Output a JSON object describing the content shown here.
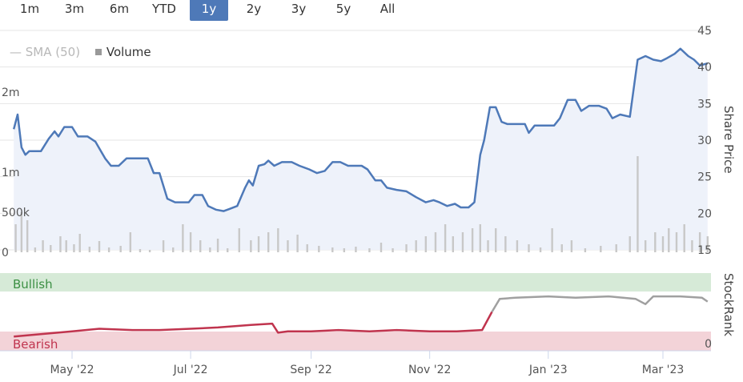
{
  "range_selector": {
    "buttons": [
      "1m",
      "3m",
      "6m",
      "YTD",
      "1y",
      "2y",
      "3y",
      "5y",
      "All"
    ],
    "active": "1y"
  },
  "legend": {
    "sma_label": "SMA (50)",
    "volume_label": "Volume"
  },
  "axis_titles": {
    "price": "Share Price",
    "rank": "StockRank"
  },
  "colors": {
    "price_line": "#4e79b8",
    "volume_bar": "#c8c8c8",
    "bullish_band": "#d6ead7",
    "bearish_band": "#f3d3d8",
    "bearish_line": "#c0344e",
    "bullish_line": "#a0a0a0",
    "active_button": "#4e79b8"
  },
  "chart_data": [
    {
      "type": "line",
      "ylabel": "Share Price",
      "ylim": [
        15,
        45
      ],
      "y_ticks": [
        "45",
        "40",
        "35",
        "30",
        "25",
        "20",
        "15"
      ],
      "x_ticks": [
        "May '22",
        "Jul '22",
        "Sep '22",
        "Nov '22",
        "Jan '23",
        "Mar '23"
      ],
      "series": [
        {
          "values": [
            [
              "2022-04-01",
              31.5
            ],
            [
              "2022-04-03",
              33.5
            ],
            [
              "2022-04-05",
              29.0
            ],
            [
              "2022-04-07",
              28.0
            ],
            [
              "2022-04-09",
              28.5
            ],
            [
              "2022-04-15",
              28.5
            ],
            [
              "2022-04-19",
              30.2
            ],
            [
              "2022-04-22",
              31.2
            ],
            [
              "2022-04-24",
              30.5
            ],
            [
              "2022-04-27",
              31.8
            ],
            [
              "2022-05-01",
              31.8
            ],
            [
              "2022-05-04",
              30.5
            ],
            [
              "2022-05-09",
              30.5
            ],
            [
              "2022-05-13",
              29.8
            ],
            [
              "2022-05-18",
              27.5
            ],
            [
              "2022-05-21",
              26.5
            ],
            [
              "2022-05-25",
              26.5
            ],
            [
              "2022-05-29",
              27.5
            ],
            [
              "2022-06-04",
              27.5
            ],
            [
              "2022-06-09",
              27.5
            ],
            [
              "2022-06-12",
              25.5
            ],
            [
              "2022-06-15",
              25.5
            ],
            [
              "2022-06-19",
              22.0
            ],
            [
              "2022-06-23",
              21.5
            ],
            [
              "2022-06-30",
              21.5
            ],
            [
              "2022-07-03",
              22.5
            ],
            [
              "2022-07-07",
              22.5
            ],
            [
              "2022-07-10",
              21.0
            ],
            [
              "2022-07-14",
              20.5
            ],
            [
              "2022-07-18",
              20.3
            ],
            [
              "2022-07-21",
              20.6
            ],
            [
              "2022-07-25",
              21.0
            ],
            [
              "2022-07-29",
              23.5
            ],
            [
              "2022-07-31",
              24.5
            ],
            [
              "2022-08-02",
              23.8
            ],
            [
              "2022-08-05",
              26.5
            ],
            [
              "2022-08-08",
              26.7
            ],
            [
              "2022-08-10",
              27.2
            ],
            [
              "2022-08-13",
              26.5
            ],
            [
              "2022-08-17",
              27.0
            ],
            [
              "2022-08-22",
              27.0
            ],
            [
              "2022-08-26",
              26.5
            ],
            [
              "2022-08-31",
              26.0
            ],
            [
              "2022-09-04",
              25.5
            ],
            [
              "2022-09-08",
              25.8
            ],
            [
              "2022-09-12",
              27.0
            ],
            [
              "2022-09-16",
              27.0
            ],
            [
              "2022-09-20",
              26.5
            ],
            [
              "2022-09-27",
              26.5
            ],
            [
              "2022-09-30",
              26.0
            ],
            [
              "2022-10-04",
              24.5
            ],
            [
              "2022-10-07",
              24.5
            ],
            [
              "2022-10-10",
              23.5
            ],
            [
              "2022-10-15",
              23.2
            ],
            [
              "2022-10-20",
              23.0
            ],
            [
              "2022-10-25",
              22.2
            ],
            [
              "2022-10-30",
              21.5
            ],
            [
              "2022-11-03",
              21.8
            ],
            [
              "2022-11-06",
              21.5
            ],
            [
              "2022-11-10",
              21.0
            ],
            [
              "2022-11-14",
              21.3
            ],
            [
              "2022-11-17",
              20.8
            ],
            [
              "2022-11-21",
              20.8
            ],
            [
              "2022-11-24",
              21.5
            ],
            [
              "2022-11-27",
              28.0
            ],
            [
              "2022-11-29",
              30.0
            ],
            [
              "2022-12-02",
              34.5
            ],
            [
              "2022-12-05",
              34.5
            ],
            [
              "2022-12-08",
              32.5
            ],
            [
              "2022-12-11",
              32.2
            ],
            [
              "2022-12-16",
              32.2
            ],
            [
              "2022-12-20",
              32.2
            ],
            [
              "2022-12-22",
              31.0
            ],
            [
              "2022-12-25",
              32.0
            ],
            [
              "2022-12-30",
              32.0
            ],
            [
              "2023-01-04",
              32.0
            ],
            [
              "2023-01-07",
              33.0
            ],
            [
              "2023-01-11",
              35.5
            ],
            [
              "2023-01-15",
              35.5
            ],
            [
              "2023-01-18",
              34.0
            ],
            [
              "2023-01-22",
              34.7
            ],
            [
              "2023-01-27",
              34.7
            ],
            [
              "2023-01-31",
              34.3
            ],
            [
              "2023-02-03",
              33.0
            ],
            [
              "2023-02-07",
              33.5
            ],
            [
              "2023-02-12",
              33.2
            ],
            [
              "2023-02-16",
              41.0
            ],
            [
              "2023-02-20",
              41.5
            ],
            [
              "2023-02-24",
              41.0
            ],
            [
              "2023-02-28",
              40.8
            ],
            [
              "2023-03-03",
              41.2
            ],
            [
              "2023-03-07",
              41.8
            ],
            [
              "2023-03-10",
              42.5
            ],
            [
              "2023-03-14",
              41.5
            ],
            [
              "2023-03-17",
              41.0
            ],
            [
              "2023-03-20",
              40.2
            ],
            [
              "2023-03-24",
              40.5
            ]
          ]
        }
      ]
    },
    {
      "type": "bar",
      "ylabel": "Volume",
      "y_ticks": [
        "2m",
        "1m",
        "500k",
        "0"
      ],
      "values": [
        [
          "2022-04-02",
          350000
        ],
        [
          "2022-04-05",
          500000
        ],
        [
          "2022-04-08",
          400000
        ],
        [
          "2022-04-12",
          60000
        ],
        [
          "2022-04-16",
          150000
        ],
        [
          "2022-04-20",
          90000
        ],
        [
          "2022-04-25",
          200000
        ],
        [
          "2022-04-28",
          150000
        ],
        [
          "2022-05-02",
          100000
        ],
        [
          "2022-05-05",
          230000
        ],
        [
          "2022-05-10",
          70000
        ],
        [
          "2022-05-15",
          140000
        ],
        [
          "2022-05-20",
          60000
        ],
        [
          "2022-05-26",
          80000
        ],
        [
          "2022-05-31",
          250000
        ],
        [
          "2022-06-05",
          40000
        ],
        [
          "2022-06-10",
          30000
        ],
        [
          "2022-06-17",
          150000
        ],
        [
          "2022-06-22",
          60000
        ],
        [
          "2022-06-27",
          350000
        ],
        [
          "2022-07-01",
          250000
        ],
        [
          "2022-07-06",
          150000
        ],
        [
          "2022-07-11",
          60000
        ],
        [
          "2022-07-15",
          170000
        ],
        [
          "2022-07-20",
          50000
        ],
        [
          "2022-07-26",
          300000
        ],
        [
          "2022-08-01",
          150000
        ],
        [
          "2022-08-05",
          200000
        ],
        [
          "2022-08-10",
          250000
        ],
        [
          "2022-08-15",
          300000
        ],
        [
          "2022-08-20",
          150000
        ],
        [
          "2022-08-25",
          220000
        ],
        [
          "2022-08-30",
          100000
        ],
        [
          "2022-09-05",
          80000
        ],
        [
          "2022-09-12",
          60000
        ],
        [
          "2022-09-18",
          50000
        ],
        [
          "2022-09-24",
          70000
        ],
        [
          "2022-10-01",
          50000
        ],
        [
          "2022-10-07",
          120000
        ],
        [
          "2022-10-13",
          50000
        ],
        [
          "2022-10-20",
          100000
        ],
        [
          "2022-10-25",
          150000
        ],
        [
          "2022-10-30",
          200000
        ],
        [
          "2022-11-04",
          250000
        ],
        [
          "2022-11-09",
          350000
        ],
        [
          "2022-11-13",
          200000
        ],
        [
          "2022-11-18",
          250000
        ],
        [
          "2022-11-23",
          300000
        ],
        [
          "2022-11-27",
          350000
        ],
        [
          "2022-12-01",
          150000
        ],
        [
          "2022-12-05",
          300000
        ],
        [
          "2022-12-10",
          200000
        ],
        [
          "2022-12-16",
          150000
        ],
        [
          "2022-12-22",
          100000
        ],
        [
          "2022-12-28",
          60000
        ],
        [
          "2023-01-03",
          300000
        ],
        [
          "2023-01-08",
          100000
        ],
        [
          "2023-01-13",
          150000
        ],
        [
          "2023-01-20",
          50000
        ],
        [
          "2023-01-28",
          80000
        ],
        [
          "2023-02-05",
          100000
        ],
        [
          "2023-02-12",
          200000
        ],
        [
          "2023-02-16",
          1200000
        ],
        [
          "2023-02-20",
          150000
        ],
        [
          "2023-02-25",
          250000
        ],
        [
          "2023-03-01",
          200000
        ],
        [
          "2023-03-04",
          300000
        ],
        [
          "2023-03-08",
          250000
        ],
        [
          "2023-03-12",
          350000
        ],
        [
          "2023-03-16",
          150000
        ],
        [
          "2023-03-20",
          250000
        ],
        [
          "2023-03-24",
          200000
        ]
      ]
    },
    {
      "type": "line",
      "ylabel": "StockRank",
      "y_ticks": [
        "0"
      ],
      "bands": [
        "Bullish",
        "Bearish"
      ],
      "series": [
        {
          "values": [
            [
              "2022-04-01",
              11
            ],
            [
              "2022-05-01",
              15
            ],
            [
              "2022-05-15",
              17
            ],
            [
              "2022-06-01",
              16
            ],
            [
              "2022-06-15",
              16
            ],
            [
              "2022-07-01",
              17
            ],
            [
              "2022-07-15",
              18
            ],
            [
              "2022-08-01",
              20
            ],
            [
              "2022-08-12",
              21
            ],
            [
              "2022-08-15",
              14
            ],
            [
              "2022-08-20",
              15
            ],
            [
              "2022-09-01",
              15
            ],
            [
              "2022-09-15",
              16
            ],
            [
              "2022-10-01",
              15
            ],
            [
              "2022-10-15",
              16
            ],
            [
              "2022-11-01",
              15
            ],
            [
              "2022-11-15",
              15
            ],
            [
              "2022-11-28",
              16
            ],
            [
              "2022-12-03",
              30
            ],
            [
              "2022-12-07",
              40
            ],
            [
              "2022-12-15",
              41
            ],
            [
              "2023-01-01",
              42
            ],
            [
              "2023-01-15",
              41
            ],
            [
              "2023-02-01",
              42
            ],
            [
              "2023-02-15",
              40
            ],
            [
              "2023-02-20",
              36
            ],
            [
              "2023-02-24",
              42
            ],
            [
              "2023-03-10",
              42
            ],
            [
              "2023-03-21",
              41
            ],
            [
              "2023-03-24",
              38
            ]
          ]
        }
      ]
    }
  ]
}
